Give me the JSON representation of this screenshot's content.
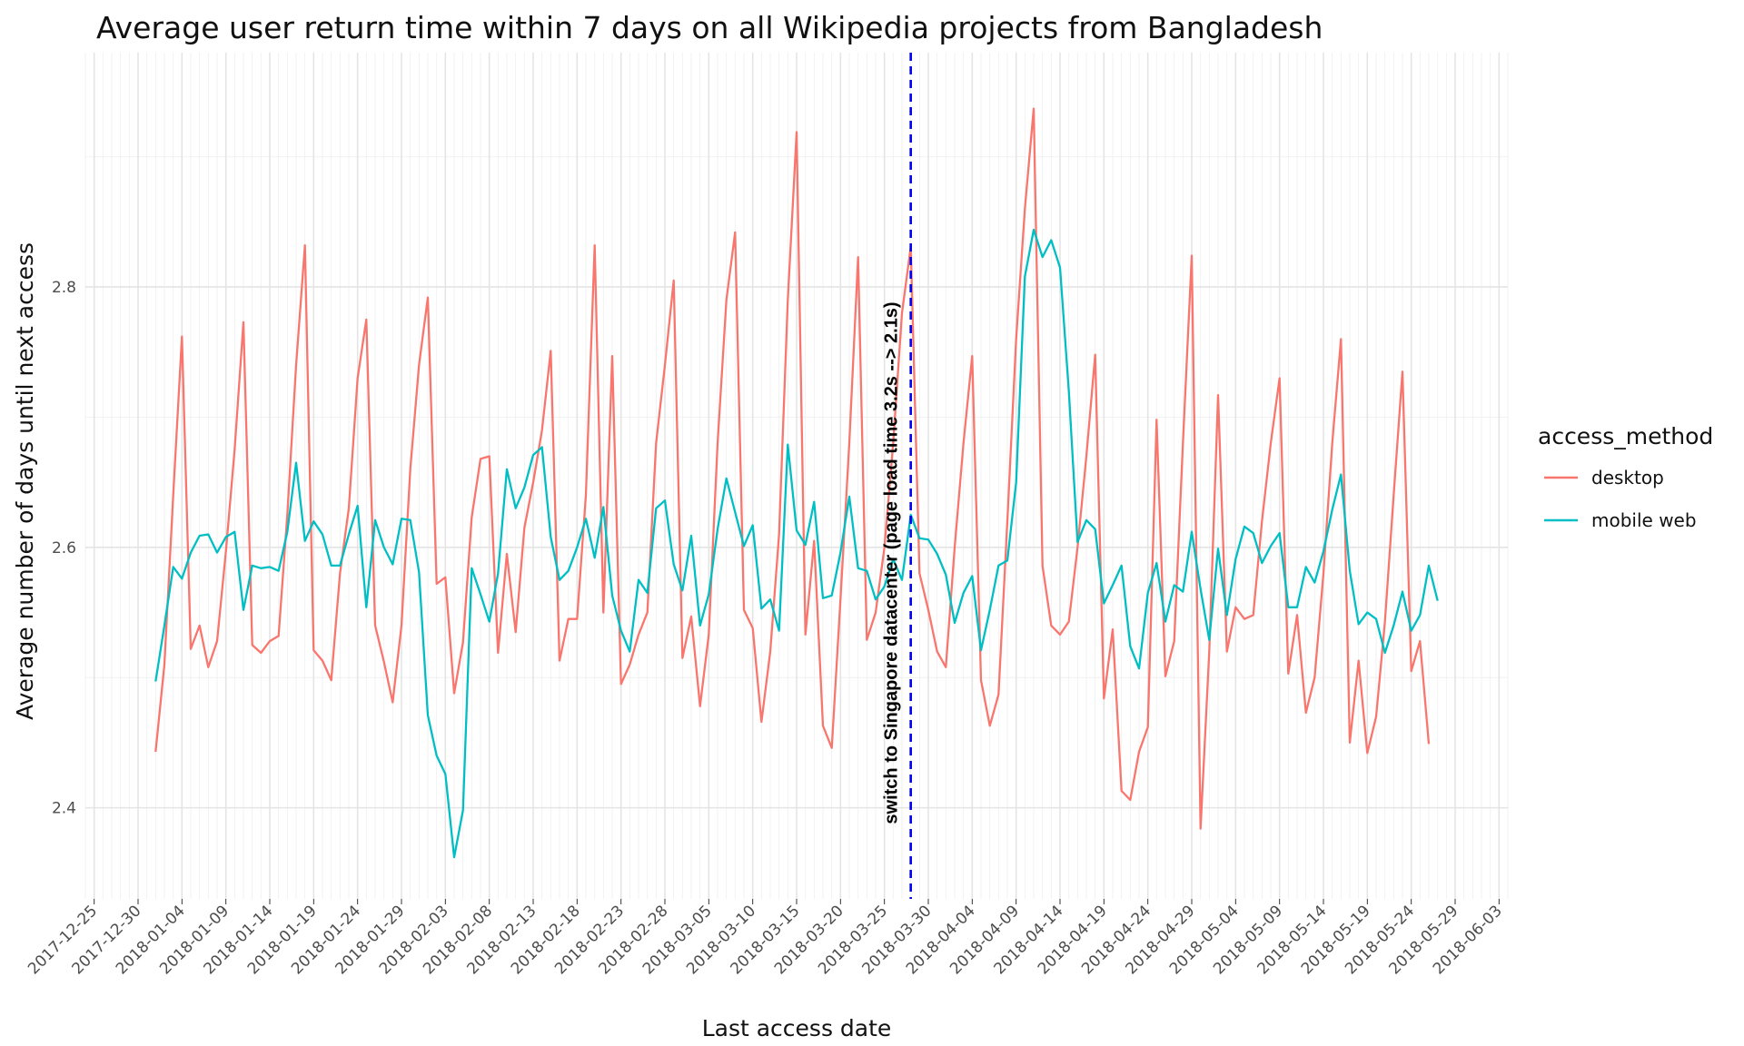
{
  "chart_data": {
    "type": "line",
    "title": "Average user return time within 7 days on all Wikipedia projects from Bangladesh",
    "xlabel": "Last access date",
    "ylabel": "Average number of days until next access",
    "x_start": "2018-01-01",
    "x_end": "2018-05-27",
    "xlim": [
      "2017-12-24",
      "2018-06-04"
    ],
    "ylim": [
      2.33,
      2.98
    ],
    "yticks": [
      2.4,
      2.6,
      2.8
    ],
    "xticks": [
      "2017-12-25",
      "2017-12-30",
      "2018-01-04",
      "2018-01-09",
      "2018-01-14",
      "2018-01-19",
      "2018-01-24",
      "2018-01-29",
      "2018-02-03",
      "2018-02-08",
      "2018-02-13",
      "2018-02-18",
      "2018-02-23",
      "2018-02-28",
      "2018-03-05",
      "2018-03-10",
      "2018-03-15",
      "2018-03-20",
      "2018-03-25",
      "2018-03-30",
      "2018-04-04",
      "2018-04-09",
      "2018-04-14",
      "2018-04-19",
      "2018-04-24",
      "2018-04-29",
      "2018-05-04",
      "2018-05-09",
      "2018-05-14",
      "2018-05-19",
      "2018-05-24",
      "2018-05-29",
      "2018-06-03"
    ],
    "grid": true,
    "legend": {
      "title": "access_method",
      "position": "right"
    },
    "series": [
      {
        "name": "desktop",
        "color": "#F8766D",
        "values": [
          2.443,
          2.51,
          2.64,
          2.762,
          2.522,
          2.54,
          2.508,
          2.528,
          2.597,
          2.675,
          2.773,
          2.525,
          2.519,
          2.528,
          2.532,
          2.625,
          2.74,
          2.832,
          2.521,
          2.513,
          2.498,
          2.58,
          2.63,
          2.73,
          2.775,
          2.54,
          2.512,
          2.481,
          2.54,
          2.66,
          2.74,
          2.792,
          2.572,
          2.577,
          2.488,
          2.527,
          2.623,
          2.668,
          2.67,
          2.519,
          2.595,
          2.535,
          2.615,
          2.65,
          2.69,
          2.751,
          2.513,
          2.545,
          2.545,
          2.64,
          2.832,
          2.55,
          2.747,
          2.495,
          2.51,
          2.533,
          2.55,
          2.68,
          2.74,
          2.805,
          2.515,
          2.547,
          2.478,
          2.533,
          2.68,
          2.79,
          2.842,
          2.552,
          2.538,
          2.466,
          2.52,
          2.61,
          2.79,
          2.919,
          2.533,
          2.605,
          2.463,
          2.446,
          2.56,
          2.68,
          2.823,
          2.529,
          2.55,
          2.6,
          2.68,
          2.78,
          2.831,
          2.58,
          2.552,
          2.52,
          2.508,
          2.6,
          2.68,
          2.747,
          2.498,
          2.463,
          2.487,
          2.62,
          2.76,
          2.86,
          2.937,
          2.586,
          2.54,
          2.533,
          2.543,
          2.6,
          2.67,
          2.748,
          2.484,
          2.537,
          2.413,
          2.406,
          2.443,
          2.462,
          2.698,
          2.501,
          2.528,
          2.68,
          2.824,
          2.384,
          2.52,
          2.717,
          2.52,
          2.554,
          2.545,
          2.548,
          2.62,
          2.68,
          2.73,
          2.503,
          2.548,
          2.473,
          2.5,
          2.58,
          2.68,
          2.76,
          2.45,
          2.513,
          2.442,
          2.47,
          2.543,
          2.64,
          2.735,
          2.505,
          2.528,
          2.449
        ]
      },
      {
        "name": "mobile web",
        "color": "#00BFC4",
        "values": [
          2.497,
          2.54,
          2.585,
          2.576,
          2.596,
          2.609,
          2.61,
          2.596,
          2.608,
          2.612,
          2.552,
          2.586,
          2.584,
          2.585,
          2.582,
          2.612,
          2.665,
          2.605,
          2.62,
          2.61,
          2.586,
          2.586,
          2.61,
          2.632,
          2.554,
          2.621,
          2.6,
          2.587,
          2.622,
          2.621,
          2.581,
          2.471,
          2.44,
          2.426,
          2.362,
          2.398,
          2.584,
          2.564,
          2.543,
          2.58,
          2.66,
          2.63,
          2.646,
          2.671,
          2.677,
          2.608,
          2.575,
          2.582,
          2.6,
          2.622,
          2.592,
          2.631,
          2.563,
          2.536,
          2.52,
          2.575,
          2.565,
          2.63,
          2.636,
          2.587,
          2.567,
          2.609,
          2.54,
          2.564,
          2.614,
          2.653,
          2.627,
          2.601,
          2.617,
          2.553,
          2.56,
          2.536,
          2.679,
          2.613,
          2.602,
          2.635,
          2.561,
          2.563,
          2.596,
          2.639,
          2.584,
          2.582,
          2.56,
          2.57,
          2.591,
          2.575,
          2.625,
          2.607,
          2.606,
          2.595,
          2.579,
          2.542,
          2.565,
          2.578,
          2.521,
          2.552,
          2.586,
          2.59,
          2.65,
          2.808,
          2.844,
          2.823,
          2.836,
          2.815,
          2.72,
          2.604,
          2.621,
          2.614,
          2.557,
          2.571,
          2.586,
          2.524,
          2.507,
          2.565,
          2.588,
          2.543,
          2.571,
          2.566,
          2.612,
          2.568,
          2.529,
          2.599,
          2.548,
          2.591,
          2.616,
          2.611,
          2.588,
          2.601,
          2.611,
          2.554,
          2.554,
          2.585,
          2.573,
          2.597,
          2.629,
          2.656,
          2.582,
          2.541,
          2.55,
          2.545,
          2.519,
          2.54,
          2.566,
          2.536,
          2.548,
          2.586,
          2.559
        ]
      }
    ],
    "annotations": [
      {
        "type": "vline",
        "x": "2018-03-28",
        "color": "#0000EE",
        "style": "dashed",
        "text": "switch to Singapore datacenter (page load time 3.2s --> 2.1s)"
      }
    ]
  }
}
